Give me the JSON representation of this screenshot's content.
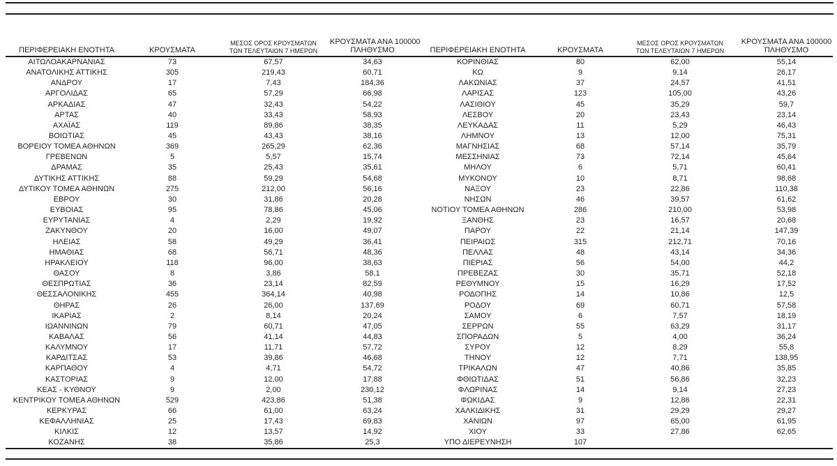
{
  "table": {
    "headers": {
      "region": "ΠΕΡΙΦΕΡΕΙΑΚΗ ΕΝΟΤΗΤΑ",
      "cases": "ΚΡΟΥΣΜΑΤΑ",
      "avg7_line1": "ΜΕΣΟΣ ΟΡΟΣ ΚΡΟΥΣΜΑΤΩΝ",
      "avg7_line2": "ΤΩΝ ΤΕΛΕΥΤΑΙΩΝ 7 ΗΜΕΡΩΝ",
      "per100k_line1": "ΚΡΟΥΣΜΑΤΑ ΑΝΑ 100000",
      "per100k_line2": "ΠΛΗΘΥΣΜΟ"
    },
    "left_rows": [
      [
        "ΑΙΤΩΛΟΑΚΑΡΝΑΝΙΑΣ",
        "73",
        "67,57",
        "34,63"
      ],
      [
        "ΑΝΑΤΟΛΙΚΗΣ ΑΤΤΙΚΗΣ",
        "305",
        "219,43",
        "60,71"
      ],
      [
        "ΑΝΔΡΟΥ",
        "17",
        "7,43",
        "184,36"
      ],
      [
        "ΑΡΓΟΛΙΔΑΣ",
        "65",
        "57,29",
        "66,98"
      ],
      [
        "ΑΡΚΑΔΙΑΣ",
        "47",
        "32,43",
        "54,22"
      ],
      [
        "ΑΡΤΑΣ",
        "40",
        "33,43",
        "58,93"
      ],
      [
        "ΑΧΑΪΑΣ",
        "119",
        "89,86",
        "38,35"
      ],
      [
        "ΒΟΙΩΤΙΑΣ",
        "45",
        "43,43",
        "38,16"
      ],
      [
        "ΒΟΡΕΙΟΥ ΤΟΜΕΑ ΑΘΗΝΩΝ",
        "369",
        "265,29",
        "62,36"
      ],
      [
        "ΓΡΕΒΕΝΩΝ",
        "5",
        "5,57",
        "15,74"
      ],
      [
        "ΔΡΑΜΑΣ",
        "35",
        "25,43",
        "35,61"
      ],
      [
        "ΔΥΤΙΚΗΣ ΑΤΤΙΚΗΣ",
        "88",
        "59,29",
        "54,68"
      ],
      [
        "ΔΥΤΙΚΟΥ ΤΟΜΕΑ ΑΘΗΝΩΝ",
        "275",
        "212,00",
        "56,16"
      ],
      [
        "ΕΒΡΟΥ",
        "30",
        "31,86",
        "20,28"
      ],
      [
        "ΕΥΒΟΙΑΣ",
        "95",
        "78,86",
        "45,06"
      ],
      [
        "ΕΥΡΥΤΑΝΙΑΣ",
        "4",
        "2,29",
        "19,92"
      ],
      [
        "ΖΑΚΥΝΘΟΥ",
        "20",
        "16,00",
        "49,07"
      ],
      [
        "ΗΛΕΙΑΣ",
        "58",
        "49,29",
        "36,41"
      ],
      [
        "ΗΜΑΘΙΑΣ",
        "68",
        "56,71",
        "48,36"
      ],
      [
        "ΗΡΑΚΛΕΙΟΥ",
        "118",
        "96,00",
        "38,63"
      ],
      [
        "ΘΑΣΟΥ",
        "8",
        "3,86",
        "58,1"
      ],
      [
        "ΘΕΣΠΡΩΤΙΑΣ",
        "36",
        "23,14",
        "82,59"
      ],
      [
        "ΘΕΣΣΑΛΟΝΙΚΗΣ",
        "455",
        "364,14",
        "40,98"
      ],
      [
        "ΘΗΡΑΣ",
        "26",
        "26,00",
        "137,69"
      ],
      [
        "ΙΚΑΡΙΑΣ",
        "2",
        "8,14",
        "20,24"
      ],
      [
        "ΙΩΑΝΝΙΝΩΝ",
        "79",
        "60,71",
        "47,05"
      ],
      [
        "ΚΑΒΑΛΑΣ",
        "56",
        "41,14",
        "44,83"
      ],
      [
        "ΚΑΛΥΜΝΟΥ",
        "17",
        "11,71",
        "57,72"
      ],
      [
        "ΚΑΡΔΙΤΣΑΣ",
        "53",
        "39,86",
        "46,68"
      ],
      [
        "ΚΑΡΠΑΘΟΥ",
        "4",
        "4,71",
        "54,72"
      ],
      [
        "ΚΑΣΤΟΡΙΑΣ",
        "9",
        "12,00",
        "17,88"
      ],
      [
        "ΚΕΑΣ - ΚΥΘΝΟΥ",
        "9",
        "2,00",
        "230,12"
      ],
      [
        "ΚΕΝΤΡΙΚΟΥ ΤΟΜΕΑ ΑΘΗΝΩΝ",
        "529",
        "423,86",
        "51,38"
      ],
      [
        "ΚΕΡΚΥΡΑΣ",
        "66",
        "61,00",
        "63,24"
      ],
      [
        "ΚΕΦΑΛΛΗΝΙΑΣ",
        "25",
        "17,43",
        "69,83"
      ],
      [
        "ΚΙΛΚΙΣ",
        "12",
        "13,57",
        "14,92"
      ],
      [
        "ΚΟΖΑΝΗΣ",
        "38",
        "35,86",
        "25,3"
      ]
    ],
    "right_rows": [
      [
        "ΚΟΡΙΝΘΙΑΣ",
        "80",
        "62,00",
        "55,14"
      ],
      [
        "ΚΩ",
        "9",
        "9,14",
        "26,17"
      ],
      [
        "ΛΑΚΩΝΙΑΣ",
        "37",
        "24,57",
        "41,51"
      ],
      [
        "ΛΑΡΙΣΑΣ",
        "123",
        "105,00",
        "43,26"
      ],
      [
        "ΛΑΣΙΘΙΟΥ",
        "45",
        "35,29",
        "59,7"
      ],
      [
        "ΛΕΣΒΟΥ",
        "20",
        "23,43",
        "23,14"
      ],
      [
        "ΛΕΥΚΑΔΑΣ",
        "11",
        "5,29",
        "46,43"
      ],
      [
        "ΛΗΜΝΟΥ",
        "13",
        "12,00",
        "75,31"
      ],
      [
        "ΜΑΓΝΗΣΙΑΣ",
        "68",
        "57,14",
        "35,79"
      ],
      [
        "ΜΕΣΣΗΝΙΑΣ",
        "73",
        "72,14",
        "45,64"
      ],
      [
        "ΜΗΛΟΥ",
        "6",
        "5,71",
        "60,41"
      ],
      [
        "ΜΥΚΟΝΟΥ",
        "10",
        "8,71",
        "98,68"
      ],
      [
        "ΝΑΞΟΥ",
        "23",
        "22,86",
        "110,38"
      ],
      [
        "ΝΗΣΩΝ",
        "46",
        "39,57",
        "61,62"
      ],
      [
        "ΝΟΤΙΟΥ ΤΟΜΕΑ ΑΘΗΝΩΝ",
        "286",
        "210,00",
        "53,98"
      ],
      [
        "ΞΑΝΘΗΣ",
        "23",
        "16,57",
        "20,68"
      ],
      [
        "ΠΑΡΟΥ",
        "22",
        "21,14",
        "147,39"
      ],
      [
        "ΠΕΙΡΑΙΩΣ",
        "315",
        "212,71",
        "70,16"
      ],
      [
        "ΠΕΛΛΑΣ",
        "48",
        "43,14",
        "34,36"
      ],
      [
        "ΠΙΕΡΙΑΣ",
        "56",
        "54,00",
        "44,2"
      ],
      [
        "ΠΡΕΒΕΖΑΣ",
        "30",
        "35,71",
        "52,18"
      ],
      [
        "ΡΕΘΥΜΝΟΥ",
        "15",
        "16,29",
        "17,52"
      ],
      [
        "ΡΟΔΟΠΗΣ",
        "14",
        "10,86",
        "12,5"
      ],
      [
        "ΡΟΔΟΥ",
        "69",
        "60,71",
        "57,58"
      ],
      [
        "ΣΑΜΟΥ",
        "6",
        "7,57",
        "18,19"
      ],
      [
        "ΣΕΡΡΩΝ",
        "55",
        "63,29",
        "31,17"
      ],
      [
        "ΣΠΟΡΑΔΩΝ",
        "5",
        "4,00",
        "36,24"
      ],
      [
        "ΣΥΡΟΥ",
        "12",
        "8,29",
        "55,8"
      ],
      [
        "ΤΗΝΟΥ",
        "12",
        "7,71",
        "138,95"
      ],
      [
        "ΤΡΙΚΑΛΩΝ",
        "47",
        "40,86",
        "35,85"
      ],
      [
        "ΦΘΙΩΤΙΔΑΣ",
        "51",
        "56,86",
        "32,23"
      ],
      [
        "ΦΛΩΡΙΝΑΣ",
        "14",
        "9,14",
        "27,23"
      ],
      [
        "ΦΩΚΙΔΑΣ",
        "9",
        "12,86",
        "22,31"
      ],
      [
        "ΧΑΛΚΙΔΙΚΗΣ",
        "31",
        "29,29",
        "29,27"
      ],
      [
        "ΧΑΝΙΩΝ",
        "97",
        "65,00",
        "61,95"
      ],
      [
        "ΧΙΟΥ",
        "33",
        "27,86",
        "62,65"
      ],
      [
        "ΥΠΟ ΔΙΕΡΕΥΝΗΣΗ",
        "107",
        "",
        ""
      ]
    ]
  }
}
